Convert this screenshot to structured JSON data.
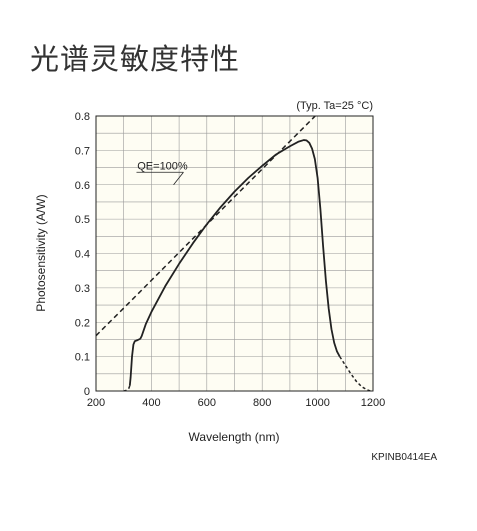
{
  "page": {
    "title": "光谱灵敏度特性"
  },
  "chart_data": {
    "type": "line",
    "title": "",
    "condition": "(Typ. Ta=25 °C)",
    "xlabel": "Wavelength (nm)",
    "ylabel": "Photosensitivity (A/W)",
    "xlim": [
      200,
      1200
    ],
    "ylim": [
      0,
      0.8
    ],
    "x_ticks": [
      200,
      400,
      600,
      800,
      1000,
      1200
    ],
    "y_ticks": [
      0,
      0.1,
      0.2,
      0.3,
      0.4,
      0.5,
      0.6,
      0.7,
      0.8
    ],
    "y_tick_labels": [
      "0",
      "0.1",
      "0.2",
      "0.3",
      "0.4",
      "0.5",
      "0.6",
      "0.7",
      "0.8"
    ],
    "x_minor_step": 100,
    "y_minor_step": 0.05,
    "grid": true,
    "code": "KPINB0414EA",
    "annotation": {
      "text": "QE=100%",
      "x": 440,
      "y": 0.645,
      "target_x": 480,
      "target_y": 0.6
    },
    "series": [
      {
        "name": "",
        "style": "dashed",
        "color": "#222222",
        "x": [
          200,
          323.6,
          700,
          1000
        ],
        "y": [
          0.161,
          0.26,
          0.565,
          0.807
        ]
      },
      {
        "name": "",
        "style": "dotted",
        "color": "#222222",
        "x": [
          300,
          310,
          318,
          322
        ],
        "y": [
          0,
          0.002,
          0.007,
          0.015
        ]
      },
      {
        "name": "",
        "style": "solid",
        "color": "#222222",
        "x": [
          322,
          325,
          330,
          335,
          340,
          350,
          360,
          365,
          380,
          400,
          450,
          500,
          550,
          600,
          650,
          700,
          750,
          800,
          850,
          900,
          930,
          950,
          960,
          970,
          980,
          990,
          1000,
          1010,
          1020,
          1030,
          1040,
          1050,
          1060,
          1070,
          1080
        ],
        "y": [
          0.015,
          0.04,
          0.1,
          0.135,
          0.145,
          0.148,
          0.152,
          0.16,
          0.195,
          0.23,
          0.305,
          0.37,
          0.43,
          0.485,
          0.535,
          0.58,
          0.62,
          0.655,
          0.688,
          0.712,
          0.725,
          0.73,
          0.729,
          0.722,
          0.705,
          0.675,
          0.62,
          0.53,
          0.42,
          0.32,
          0.24,
          0.18,
          0.14,
          0.115,
          0.1
        ]
      },
      {
        "name": "",
        "style": "dotted",
        "color": "#222222",
        "x": [
          1080,
          1100,
          1120,
          1140,
          1160,
          1180,
          1190
        ],
        "y": [
          0.1,
          0.075,
          0.05,
          0.028,
          0.012,
          0.003,
          0
        ]
      }
    ]
  }
}
